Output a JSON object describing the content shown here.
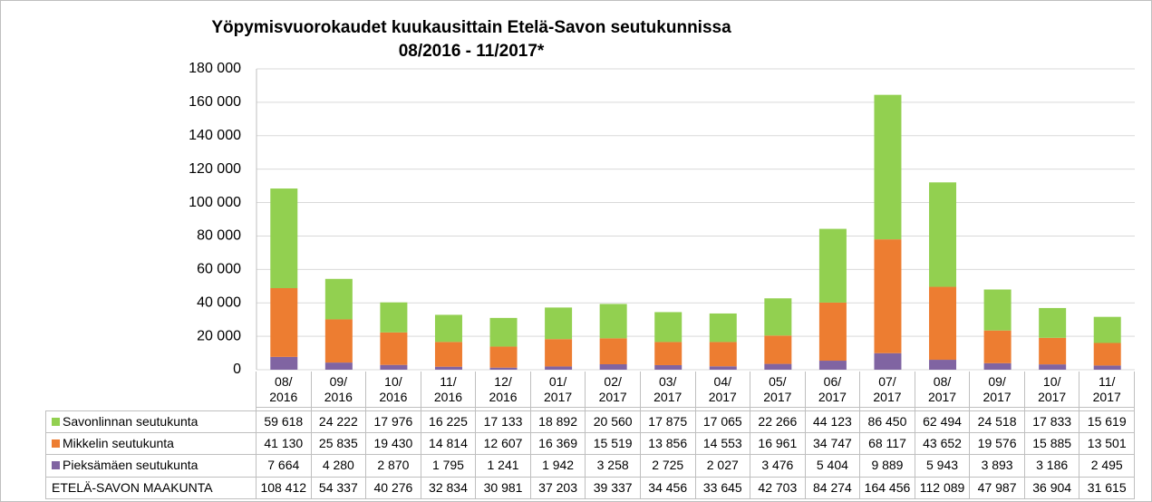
{
  "chart_data": {
    "type": "stacked_bar",
    "title": "Yöpymisvuorokaudet kuukausittain Etelä-Savon seutukunnissa",
    "subtitle": "08/2016 - 11/2017*",
    "categories": [
      "08/\n2016",
      "09/\n2016",
      "10/\n2016",
      "11/\n2016",
      "12/\n2016",
      "01/\n2017",
      "02/\n2017",
      "03/\n2017",
      "04/\n2017",
      "05/\n2017",
      "06/\n2017",
      "07/\n2017",
      "08/\n2017",
      "09/\n2017",
      "10/\n2017",
      "11/\n2017"
    ],
    "series": [
      {
        "name": "Savonlinnan seutukunta",
        "color": "#92d050",
        "values": [
          59618,
          24222,
          17976,
          16225,
          17133,
          18892,
          20560,
          17875,
          17065,
          22266,
          44123,
          86450,
          62494,
          24518,
          17833,
          15619
        ],
        "value_labels": [
          "59 618",
          "24 222",
          "17 976",
          "16 225",
          "17 133",
          "18 892",
          "20 560",
          "17 875",
          "17 065",
          "22 266",
          "44 123",
          "86 450",
          "62 494",
          "24 518",
          "17 833",
          "15 619"
        ]
      },
      {
        "name": "Mikkelin seutukunta",
        "color": "#ed7d31",
        "values": [
          41130,
          25835,
          19430,
          14814,
          12607,
          16369,
          15519,
          13856,
          14553,
          16961,
          34747,
          68117,
          43652,
          19576,
          15885,
          13501
        ],
        "value_labels": [
          "41 130",
          "25 835",
          "19 430",
          "14 814",
          "12 607",
          "16 369",
          "15 519",
          "13 856",
          "14 553",
          "16 961",
          "34 747",
          "68 117",
          "43 652",
          "19 576",
          "15 885",
          "13 501"
        ]
      },
      {
        "name": "Pieksämäen seutukunta",
        "color": "#8064a2",
        "values": [
          7664,
          4280,
          2870,
          1795,
          1241,
          1942,
          3258,
          2725,
          2027,
          3476,
          5404,
          9889,
          5943,
          3893,
          3186,
          2495
        ],
        "value_labels": [
          "7 664",
          "4 280",
          "2 870",
          "1 795",
          "1 241",
          "1 942",
          "3 258",
          "2 725",
          "2 027",
          "3 476",
          "5 404",
          "9 889",
          "5 943",
          "3 893",
          "3 186",
          "2 495"
        ]
      }
    ],
    "totals": {
      "name": "ETELÄ-SAVON MAAKUNTA",
      "values": [
        108412,
        54337,
        40276,
        32834,
        30981,
        37203,
        39337,
        34456,
        33645,
        42703,
        84274,
        164456,
        112089,
        47987,
        36904,
        31615
      ],
      "value_labels": [
        "108 412",
        "54 337",
        "40 276",
        "32 834",
        "30 981",
        "37 203",
        "39 337",
        "34 456",
        "33 645",
        "42 703",
        "84 274",
        "164 456",
        "112 089",
        "47 987",
        "36 904",
        "31 615"
      ]
    },
    "ylim": [
      0,
      180000
    ],
    "yticks": [
      0,
      {
        "value": 20000,
        "label": "20 000"
      },
      {
        "value": 40000,
        "label": "40 000"
      },
      {
        "value": 60000,
        "label": "60 000"
      },
      {
        "value": 80000,
        "label": "80 000"
      },
      {
        "value": 100000,
        "label": "100 000"
      },
      {
        "value": 120000,
        "label": "120 000"
      },
      {
        "value": 140000,
        "label": "140 000"
      },
      {
        "value": 160000,
        "label": "160 000"
      },
      {
        "value": 180000,
        "label": "180 000"
      }
    ],
    "grid": true
  }
}
